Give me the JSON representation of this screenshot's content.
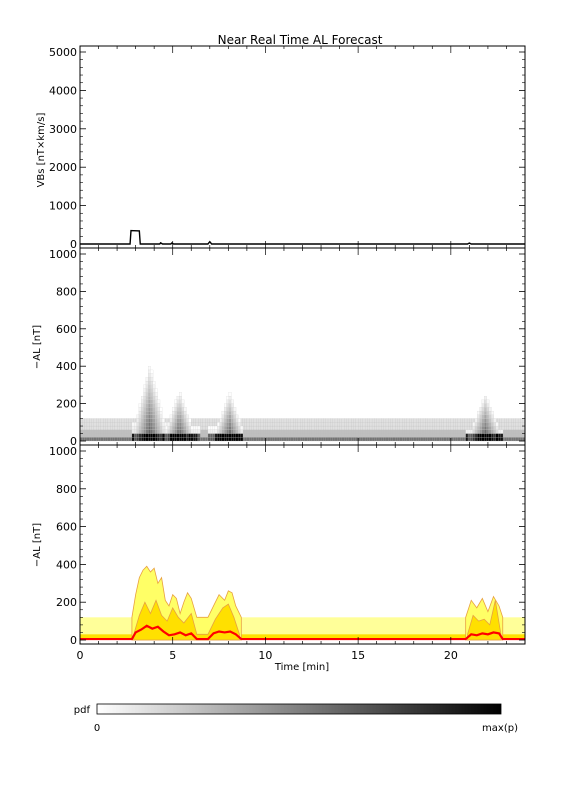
{
  "chart_data": [
    {
      "type": "line",
      "title": "Near Real Time AL Forecast",
      "ylabel": "VBs [nT×km/s]",
      "xlim": [
        0,
        24
      ],
      "ylim": [
        0,
        5000
      ],
      "yticks": [
        0,
        1000,
        2000,
        3000,
        4000,
        5000
      ],
      "x": [
        0,
        2.7,
        2.75,
        3.2,
        3.25,
        4.3,
        4.35,
        4.45,
        4.9,
        4.95,
        5.05,
        6.9,
        7.0,
        7.1,
        20.9,
        21.0,
        21.1,
        24
      ],
      "values": [
        0,
        0,
        350,
        340,
        0,
        0,
        30,
        0,
        0,
        25,
        0,
        0,
        60,
        0,
        0,
        25,
        0,
        0
      ]
    },
    {
      "type": "heatmap",
      "ylabel": "−AL [nT]",
      "xlim": [
        0,
        24
      ],
      "ylim": [
        0,
        1000
      ],
      "yticks": [
        0,
        200,
        400,
        600,
        800,
        1000
      ],
      "baseline_ymax": 120,
      "events": [
        {
          "x0": 2.8,
          "x1": 4.8,
          "peak_x": 3.7,
          "ymax": 400
        },
        {
          "x0": 4.6,
          "x1": 6.4,
          "peak_x": 5.3,
          "ymax": 260
        },
        {
          "x0": 6.9,
          "x1": 8.7,
          "peak_x": 8.0,
          "ymax": 250
        },
        {
          "x0": 20.8,
          "x1": 22.8,
          "peak_x": 21.8,
          "ymax": 240
        }
      ]
    },
    {
      "type": "area",
      "ylabel": "−AL [nT]",
      "xlabel": "Time [min]",
      "xlim": [
        0,
        24
      ],
      "ylim": [
        0,
        1000
      ],
      "yticks": [
        0,
        200,
        400,
        600,
        800,
        1000
      ],
      "xticks": [
        0,
        5,
        10,
        15,
        20
      ],
      "band": {
        "upper": 120,
        "middle": 30
      },
      "outer_contour": {
        "x": [
          2.8,
          3.0,
          3.2,
          3.4,
          3.6,
          3.8,
          4.0,
          4.2,
          4.4,
          4.6,
          4.8,
          5.0,
          5.2,
          5.4,
          5.6,
          5.8,
          6.0,
          6.3,
          6.9,
          7.2,
          7.5,
          7.8,
          8.0,
          8.2,
          8.4,
          8.7
        ],
        "values": [
          120,
          240,
          330,
          370,
          390,
          360,
          380,
          300,
          330,
          210,
          180,
          240,
          220,
          140,
          200,
          250,
          220,
          120,
          120,
          180,
          240,
          210,
          260,
          250,
          180,
          120
        ]
      },
      "fill_contour": {
        "x": [
          2.9,
          3.2,
          3.5,
          3.8,
          4.1,
          4.4,
          4.7,
          5.0,
          5.3,
          5.6,
          6.0,
          6.3,
          6.9,
          7.3,
          7.7,
          8.0,
          8.3,
          8.6
        ],
        "values": [
          30,
          130,
          200,
          140,
          210,
          130,
          100,
          170,
          120,
          90,
          140,
          30,
          30,
          110,
          170,
          190,
          120,
          30
        ]
      },
      "outer_contour_2": {
        "x": [
          20.8,
          21.1,
          21.4,
          21.7,
          22.0,
          22.3,
          22.6,
          22.8
        ],
        "values": [
          120,
          210,
          170,
          220,
          150,
          230,
          180,
          120
        ]
      },
      "fill_contour_2": {
        "x": [
          20.9,
          21.2,
          21.5,
          21.8,
          22.1,
          22.4,
          22.7
        ],
        "values": [
          30,
          130,
          100,
          110,
          80,
          210,
          30
        ]
      },
      "median_line": {
        "x": [
          0,
          2.8,
          3.0,
          3.3,
          3.6,
          3.9,
          4.2,
          4.5,
          4.8,
          5.1,
          5.4,
          5.7,
          6.0,
          6.3,
          6.9,
          7.2,
          7.5,
          7.8,
          8.1,
          8.4,
          8.7,
          20.8,
          21.1,
          21.4,
          21.7,
          22.0,
          22.3,
          22.6,
          22.8,
          24
        ],
        "values": [
          5,
          5,
          40,
          55,
          75,
          60,
          70,
          45,
          25,
          30,
          40,
          25,
          35,
          5,
          5,
          35,
          45,
          40,
          45,
          30,
          5,
          5,
          30,
          25,
          35,
          30,
          40,
          35,
          5,
          5
        ]
      }
    }
  ],
  "colorbar": {
    "label": "pdf",
    "min_label": "0",
    "max_label": "max(p)"
  },
  "colors": {
    "median": "#ff0000",
    "band_light": "#ffff99",
    "band_mid": "#ffe000",
    "outer": "#ffff66",
    "contour_line": "#e8a040"
  }
}
